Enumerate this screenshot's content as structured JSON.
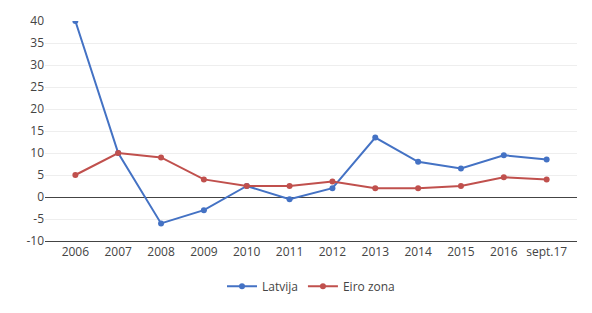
{
  "chart_data": {
    "type": "line",
    "categories": [
      "2006",
      "2007",
      "2008",
      "2009",
      "2010",
      "2011",
      "2012",
      "2013",
      "2014",
      "2015",
      "2016",
      "sept.17"
    ],
    "series": [
      {
        "name": "Latvija",
        "color": "#4472C4",
        "values": [
          40,
          10,
          -6,
          -3,
          2.5,
          -0.5,
          2,
          13.5,
          8,
          6.5,
          9.5,
          8.5
        ]
      },
      {
        "name": "Eiro zona",
        "color": "#C0504D",
        "values": [
          5,
          10,
          9,
          4,
          2.5,
          2.5,
          3.5,
          2,
          2,
          2.5,
          4.5,
          4
        ]
      }
    ],
    "ylim": [
      -10,
      40
    ],
    "yticks": [
      -10,
      -5,
      0,
      5,
      10,
      15,
      20,
      25,
      30,
      35,
      40
    ],
    "grid": true,
    "legend": "bottom",
    "marker": "circle"
  }
}
